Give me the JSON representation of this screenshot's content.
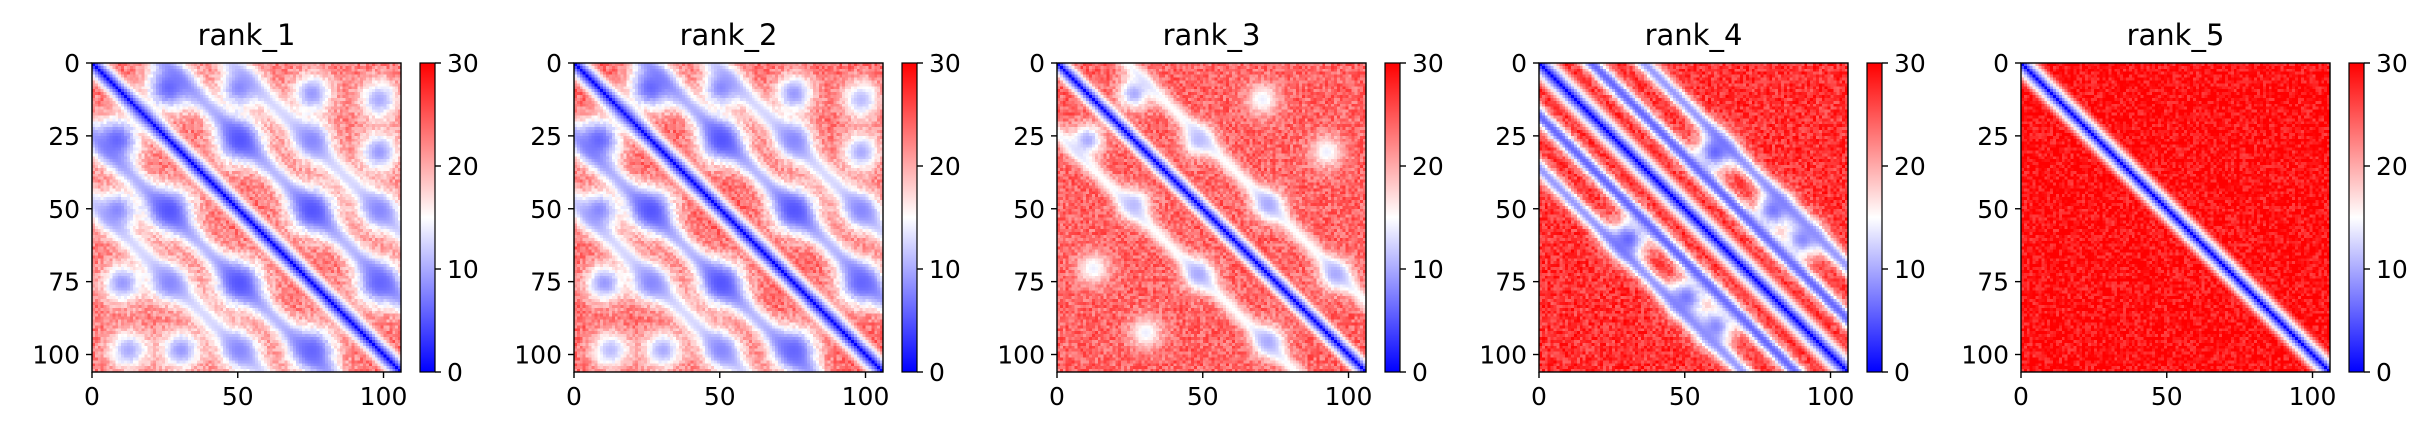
{
  "chart_data": [
    {
      "type": "heatmap",
      "title": "rank_1",
      "n": 106,
      "xlim": [
        0,
        106
      ],
      "ylim": [
        106,
        0
      ],
      "xticks": [
        0,
        50,
        100
      ],
      "yticks": [
        0,
        25,
        50,
        75,
        100
      ],
      "color_scale": {
        "min": 0,
        "max": 30,
        "ticks": [
          0,
          10,
          20,
          30
        ],
        "colormap": "bwr"
      },
      "diagonal_band_width": 6,
      "background_level": 23,
      "contacts": [
        {
          "i": 8,
          "j": 26,
          "v": 6,
          "w": 6
        },
        {
          "i": 8,
          "j": 50,
          "v": 8,
          "w": 5
        },
        {
          "i": 10,
          "j": 75,
          "v": 9,
          "w": 5
        },
        {
          "i": 12,
          "j": 98,
          "v": 10,
          "w": 5
        },
        {
          "i": 26,
          "j": 50,
          "v": 5,
          "w": 6
        },
        {
          "i": 26,
          "j": 75,
          "v": 8,
          "w": 5
        },
        {
          "i": 30,
          "j": 98,
          "v": 9,
          "w": 5
        },
        {
          "i": 50,
          "j": 75,
          "v": 5,
          "w": 6
        },
        {
          "i": 50,
          "j": 98,
          "v": 8,
          "w": 5
        },
        {
          "i": 75,
          "j": 98,
          "v": 6,
          "w": 6
        }
      ],
      "secondary_bands": [
        {
          "offset": 25,
          "v": 11,
          "w": 4
        },
        {
          "offset": 48,
          "v": 13,
          "w": 4
        }
      ]
    },
    {
      "type": "heatmap",
      "title": "rank_2",
      "n": 106,
      "xlim": [
        0,
        106
      ],
      "ylim": [
        106,
        0
      ],
      "xticks": [
        0,
        50,
        100
      ],
      "yticks": [
        0,
        25,
        50,
        75,
        100
      ],
      "color_scale": {
        "min": 0,
        "max": 30,
        "ticks": [
          0,
          10,
          20,
          30
        ],
        "colormap": "bwr"
      },
      "diagonal_band_width": 6,
      "background_level": 24,
      "contacts": [
        {
          "i": 8,
          "j": 26,
          "v": 6,
          "w": 6
        },
        {
          "i": 8,
          "j": 50,
          "v": 8,
          "w": 5
        },
        {
          "i": 10,
          "j": 75,
          "v": 9,
          "w": 5
        },
        {
          "i": 12,
          "j": 98,
          "v": 11,
          "w": 5
        },
        {
          "i": 26,
          "j": 50,
          "v": 5,
          "w": 6
        },
        {
          "i": 26,
          "j": 75,
          "v": 8,
          "w": 5
        },
        {
          "i": 30,
          "j": 98,
          "v": 10,
          "w": 5
        },
        {
          "i": 50,
          "j": 75,
          "v": 5,
          "w": 6
        },
        {
          "i": 50,
          "j": 98,
          "v": 8,
          "w": 5
        },
        {
          "i": 75,
          "j": 98,
          "v": 6,
          "w": 6
        }
      ],
      "secondary_bands": [
        {
          "offset": 25,
          "v": 11,
          "w": 4
        },
        {
          "offset": 48,
          "v": 13,
          "w": 4
        }
      ]
    },
    {
      "type": "heatmap",
      "title": "rank_3",
      "n": 106,
      "xlim": [
        0,
        106
      ],
      "ylim": [
        106,
        0
      ],
      "xticks": [
        0,
        50,
        100
      ],
      "yticks": [
        0,
        25,
        50,
        75,
        100
      ],
      "color_scale": {
        "min": 0,
        "max": 30,
        "ticks": [
          0,
          10,
          20,
          30
        ],
        "colormap": "bwr"
      },
      "diagonal_band_width": 5,
      "background_level": 24,
      "contacts": [
        {
          "i": 10,
          "j": 26,
          "v": 10,
          "w": 4
        },
        {
          "i": 26,
          "j": 48,
          "v": 11,
          "w": 4
        },
        {
          "i": 48,
          "j": 72,
          "v": 10,
          "w": 4
        },
        {
          "i": 72,
          "j": 95,
          "v": 10,
          "w": 4
        },
        {
          "i": 12,
          "j": 70,
          "v": 14,
          "w": 4
        },
        {
          "i": 30,
          "j": 92,
          "v": 14,
          "w": 4
        }
      ],
      "secondary_bands": [
        {
          "offset": 24,
          "v": 15,
          "w": 3
        }
      ]
    },
    {
      "type": "heatmap",
      "title": "rank_4",
      "n": 106,
      "xlim": [
        0,
        106
      ],
      "ylim": [
        106,
        0
      ],
      "xticks": [
        0,
        50,
        100
      ],
      "yticks": [
        0,
        25,
        50,
        75,
        100
      ],
      "color_scale": {
        "min": 0,
        "max": 30,
        "ticks": [
          0,
          10,
          20,
          30
        ],
        "colormap": "bwr"
      },
      "diagonal_band_width": 6,
      "background_level": 27,
      "contacts": [
        {
          "i": 30,
          "j": 60,
          "v": 6,
          "w": 5
        },
        {
          "i": 50,
          "j": 80,
          "v": 7,
          "w": 5
        },
        {
          "i": 60,
          "j": 90,
          "v": 8,
          "w": 5
        }
      ],
      "secondary_bands": [
        {
          "offset": 18,
          "v": 6,
          "w": 3
        },
        {
          "offset": 36,
          "v": 9,
          "w": 3
        }
      ]
    },
    {
      "type": "heatmap",
      "title": "rank_5",
      "n": 106,
      "xlim": [
        0,
        106
      ],
      "ylim": [
        106,
        0
      ],
      "xticks": [
        0,
        50,
        100
      ],
      "yticks": [
        0,
        25,
        50,
        75,
        100
      ],
      "color_scale": {
        "min": 0,
        "max": 30,
        "ticks": [
          0,
          10,
          20,
          30
        ],
        "colormap": "bwr"
      },
      "diagonal_band_width": 5,
      "background_level": 29,
      "contacts": [],
      "secondary_bands": []
    }
  ]
}
